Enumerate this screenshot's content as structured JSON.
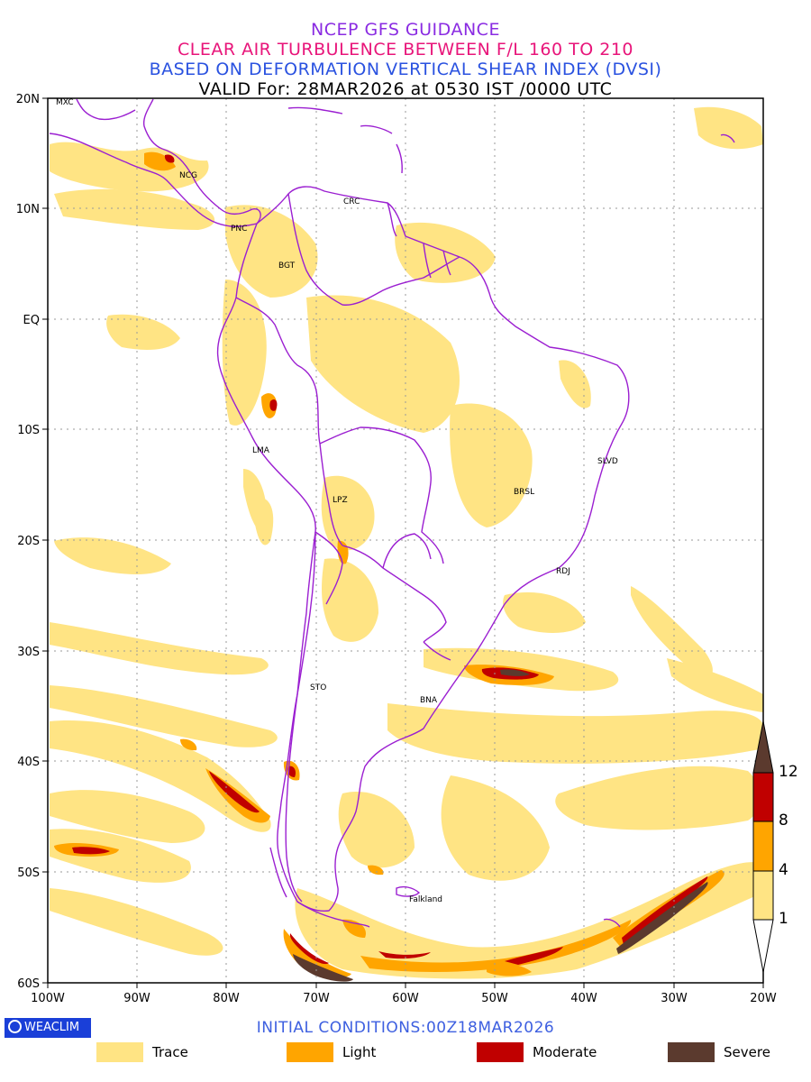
{
  "title": {
    "line1": "NCEP GFS GUIDANCE",
    "line2": "CLEAR AIR TURBULENCE BETWEEN F/L 160 TO 210",
    "line3": "BASED ON DEFORMATION VERTICAL SHEAR INDEX (DVSI)",
    "line4": "VALID For: 28MAR2026 at 0530 IST /0000 UTC"
  },
  "axes": {
    "lat_labels": [
      "20N",
      "10N",
      "EQ",
      "10S",
      "20S",
      "30S",
      "40S",
      "50S",
      "60S"
    ],
    "lon_labels": [
      "100W",
      "90W",
      "80W",
      "70W",
      "60W",
      "50W",
      "40W",
      "30W",
      "20W"
    ],
    "lat_range": [
      -60,
      20
    ],
    "lon_range": [
      -100,
      -20
    ],
    "grid": "dotted"
  },
  "cities": [
    "MXC",
    "NCG",
    "CRC",
    "PNC",
    "BGT",
    "LMA",
    "SLVD",
    "BRSL",
    "LPZ",
    "RDJ",
    "STO",
    "BNA",
    "Falkland"
  ],
  "colorbar": {
    "labels": [
      "12",
      "8",
      "4",
      "1"
    ],
    "colors": [
      "#5b3a2e",
      "#c00000",
      "#ffa500",
      "#ffe484",
      "#ffffff"
    ]
  },
  "initial_conditions": "INITIAL CONDITIONS:00Z18MAR2026",
  "brand": "WEACLIM",
  "legend": [
    {
      "label": "Trace",
      "color": "#ffe484"
    },
    {
      "label": "Light",
      "color": "#ffa500"
    },
    {
      "label": "Moderate",
      "color": "#c00000"
    },
    {
      "label": "Severe",
      "color": "#5b3a2e"
    }
  ],
  "colors": {
    "coastline": "#9b1fd1",
    "trace": "#ffe484",
    "light": "#ffa500",
    "moderate": "#c00000",
    "severe": "#5b3a2e"
  }
}
